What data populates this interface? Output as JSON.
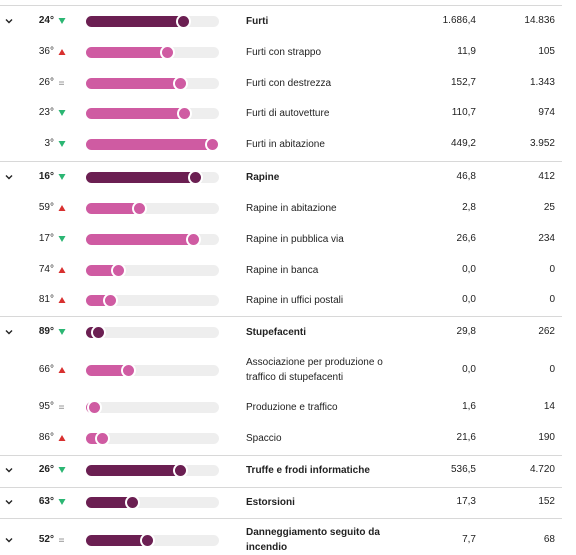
{
  "colors": {
    "main_bar": "#6b1f52",
    "sub_bar": "#cf5ba2",
    "track": "#eeeeee",
    "trend_up": "#d8302f",
    "trend_down": "#2bb673",
    "trend_equal": "#999999"
  },
  "rows": [
    {
      "group": true,
      "rank": "24°",
      "trend": "down",
      "level": 0.75,
      "label": "Furti",
      "value_1": "1.686,4",
      "value_2": "14.836"
    },
    {
      "group": false,
      "rank": "36°",
      "trend": "up",
      "level": 0.63,
      "label": "Furti con strappo",
      "value_1": "11,9",
      "value_2": "105"
    },
    {
      "group": false,
      "rank": "26°",
      "trend": "equal",
      "level": 0.73,
      "label": "Furti con destrezza",
      "value_1": "152,7",
      "value_2": "1.343"
    },
    {
      "group": false,
      "rank": "23°",
      "trend": "down",
      "level": 0.76,
      "label": "Furti di autovetture",
      "value_1": "110,7",
      "value_2": "974"
    },
    {
      "group": false,
      "rank": "3°",
      "trend": "down",
      "level": 0.97,
      "label": "Furti in abitazione",
      "value_1": "449,2",
      "value_2": "3.952"
    },
    {
      "group": true,
      "rank": "16°",
      "trend": "down",
      "level": 0.84,
      "label": "Rapine",
      "value_1": "46,8",
      "value_2": "412"
    },
    {
      "group": false,
      "rank": "59°",
      "trend": "up",
      "level": 0.42,
      "label": "Rapine in abitazione",
      "value_1": "2,8",
      "value_2": "25"
    },
    {
      "group": false,
      "rank": "17°",
      "trend": "down",
      "level": 0.83,
      "label": "Rapine in pubblica via",
      "value_1": "26,6",
      "value_2": "234"
    },
    {
      "group": false,
      "rank": "74°",
      "trend": "up",
      "level": 0.26,
      "label": "Rapine in banca",
      "value_1": "0,0",
      "value_2": "0"
    },
    {
      "group": false,
      "rank": "81°",
      "trend": "up",
      "level": 0.2,
      "label": "Rapine in uffici postali",
      "value_1": "0,0",
      "value_2": "0"
    },
    {
      "group": true,
      "rank": "89°",
      "trend": "down",
      "level": 0.11,
      "label": "Stupefacenti",
      "value_1": "29,8",
      "value_2": "262"
    },
    {
      "group": false,
      "rank": "66°",
      "trend": "up",
      "level": 0.34,
      "label": "Associazione per produzione o traffico di stupefacenti",
      "value_1": "0,0",
      "value_2": "0"
    },
    {
      "group": false,
      "rank": "95°",
      "trend": "equal",
      "level": 0.05,
      "label": "Produzione e traffico",
      "value_1": "1,6",
      "value_2": "14"
    },
    {
      "group": false,
      "rank": "86°",
      "trend": "up",
      "level": 0.14,
      "label": "Spaccio",
      "value_1": "21,6",
      "value_2": "190"
    },
    {
      "group": true,
      "rank": "26°",
      "trend": "down",
      "level": 0.73,
      "label": "Truffe e frodi informatiche",
      "value_1": "536,5",
      "value_2": "4.720"
    },
    {
      "group": true,
      "rank": "63°",
      "trend": "down",
      "level": 0.37,
      "label": "Estorsioni",
      "value_1": "17,3",
      "value_2": "152"
    },
    {
      "group": true,
      "rank": "52°",
      "trend": "equal",
      "level": 0.48,
      "label": "Danneggiamento seguito da incendio",
      "value_1": "7,7",
      "value_2": "68"
    }
  ]
}
